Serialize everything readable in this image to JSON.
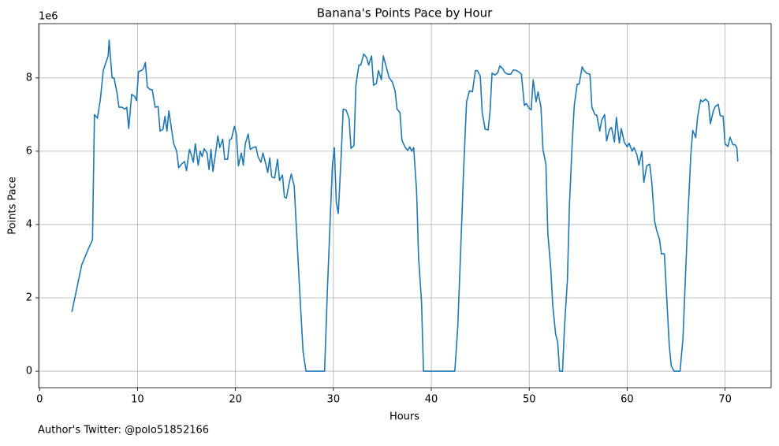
{
  "chart_data": {
    "type": "line",
    "title": "Banana's Points Pace by Hour",
    "xlabel": "Hours",
    "ylabel": "Points Pace",
    "y_offset_label": "1e6",
    "footer": "Author's Twitter: @polo51852166",
    "xlim": [
      -0.1,
      74.7
    ],
    "ylim": [
      -0.45,
      9.48
    ],
    "xticks": [
      0,
      10,
      20,
      30,
      40,
      50,
      60,
      70
    ],
    "yticks": [
      0,
      2,
      4,
      6,
      8
    ],
    "grid": true,
    "series": [
      {
        "color": "#1f77b4",
        "x": [
          3.3,
          4.3,
          5.0,
          5.4,
          5.6,
          5.9,
          6.2,
          6.5,
          7.0,
          7.1,
          7.4,
          7.6,
          7.9,
          8.1,
          8.4,
          8.7,
          8.9,
          9.1,
          9.4,
          9.7,
          9.9,
          10.1,
          10.4,
          10.6,
          10.8,
          11.0,
          11.3,
          11.5,
          11.8,
          12.1,
          12.3,
          12.6,
          12.8,
          13.0,
          13.2,
          13.5,
          13.7,
          14.0,
          14.2,
          14.5,
          14.8,
          15.0,
          15.3,
          15.5,
          15.7,
          15.9,
          16.2,
          16.4,
          16.6,
          16.8,
          17.1,
          17.3,
          17.5,
          17.7,
          18.0,
          18.2,
          18.4,
          18.7,
          18.9,
          19.2,
          19.4,
          19.6,
          19.9,
          20.1,
          20.3,
          20.6,
          20.8,
          21.0,
          21.3,
          21.5,
          21.8,
          22.1,
          22.3,
          22.6,
          22.8,
          23.1,
          23.3,
          23.5,
          23.7,
          24.0,
          24.3,
          24.5,
          24.8,
          25.0,
          25.2,
          25.5,
          25.7,
          26.0,
          26.3,
          26.6,
          26.9,
          27.2,
          28.0,
          29.1,
          29.4,
          29.7,
          29.9,
          30.1,
          30.3,
          30.5,
          30.8,
          31.0,
          31.3,
          31.6,
          31.8,
          32.1,
          32.3,
          32.6,
          32.8,
          33.1,
          33.4,
          33.6,
          33.9,
          34.1,
          34.4,
          34.6,
          34.9,
          35.1,
          35.4,
          35.7,
          36.0,
          36.3,
          36.5,
          36.8,
          37.0,
          37.3,
          37.6,
          37.8,
          38.0,
          38.2,
          38.5,
          38.7,
          39.0,
          39.2,
          40.0,
          41.0,
          42.0,
          42.4,
          42.7,
          43.0,
          43.3,
          43.6,
          43.9,
          44.2,
          44.5,
          44.7,
          45.0,
          45.2,
          45.5,
          45.8,
          46.0,
          46.2,
          46.5,
          46.8,
          47.0,
          47.3,
          47.5,
          47.8,
          48.1,
          48.4,
          48.7,
          49.0,
          49.2,
          49.5,
          49.7,
          50.0,
          50.2,
          50.4,
          50.7,
          50.9,
          51.2,
          51.4,
          51.7,
          51.9,
          52.2,
          52.4,
          52.7,
          52.9,
          53.1,
          53.4,
          53.6,
          53.9,
          54.1,
          54.4,
          54.6,
          54.9,
          55.1,
          55.4,
          55.6,
          55.9,
          56.2,
          56.4,
          56.7,
          56.9,
          57.2,
          57.4,
          57.7,
          57.9,
          58.2,
          58.4,
          58.7,
          58.9,
          59.2,
          59.4,
          59.7,
          60.0,
          60.2,
          60.5,
          60.7,
          61.0,
          61.2,
          61.5,
          61.7,
          62.0,
          62.3,
          62.5,
          62.8,
          63.0,
          63.3,
          63.5,
          63.8,
          64.0,
          64.3,
          64.5,
          64.8,
          65.4,
          65.7,
          66.0,
          66.2,
          66.5,
          66.7,
          67.0,
          67.2,
          67.5,
          67.7,
          68.0,
          68.3,
          68.5,
          68.8,
          69.0,
          69.3,
          69.5,
          69.8,
          70.0,
          70.3,
          70.5,
          70.8,
          71.0,
          71.2,
          71.3
        ],
        "values": [
          1.62,
          2.9,
          3.35,
          3.58,
          7.0,
          6.9,
          7.4,
          8.2,
          8.6,
          9.03,
          8.0,
          8.0,
          7.6,
          7.2,
          7.2,
          7.15,
          7.2,
          6.62,
          7.55,
          7.5,
          7.38,
          8.17,
          8.2,
          8.25,
          8.42,
          7.75,
          7.68,
          7.68,
          7.2,
          7.22,
          6.55,
          6.6,
          6.95,
          6.55,
          7.1,
          6.55,
          6.2,
          6.0,
          5.55,
          5.65,
          5.72,
          5.47,
          6.05,
          5.9,
          5.7,
          6.2,
          5.62,
          6.0,
          5.85,
          6.07,
          5.95,
          5.5,
          6.05,
          5.45,
          6.0,
          6.42,
          6.1,
          6.33,
          5.78,
          5.78,
          6.3,
          6.35,
          6.68,
          6.45,
          5.6,
          5.95,
          5.62,
          6.2,
          6.47,
          6.05,
          6.1,
          6.12,
          5.85,
          5.7,
          5.95,
          5.65,
          5.42,
          5.82,
          5.3,
          5.27,
          5.78,
          5.2,
          5.35,
          4.75,
          4.72,
          5.15,
          5.38,
          5.05,
          3.5,
          2.0,
          0.55,
          0,
          0,
          0,
          2.3,
          4.3,
          5.6,
          6.1,
          4.6,
          4.3,
          5.9,
          7.15,
          7.12,
          6.9,
          6.08,
          6.15,
          7.8,
          8.35,
          8.35,
          8.65,
          8.55,
          8.35,
          8.6,
          7.8,
          7.85,
          8.2,
          7.95,
          8.6,
          8.3,
          8.0,
          7.9,
          7.65,
          7.15,
          7.05,
          6.3,
          6.12,
          6.02,
          6.12,
          6.0,
          6.1,
          4.9,
          3.1,
          1.9,
          0,
          0,
          0,
          0,
          0,
          1.2,
          3.3,
          5.5,
          7.35,
          7.65,
          7.62,
          8.2,
          8.2,
          8.05,
          7.05,
          6.6,
          6.58,
          7.1,
          8.13,
          8.08,
          8.15,
          8.33,
          8.25,
          8.15,
          8.1,
          8.1,
          8.22,
          8.2,
          8.15,
          8.1,
          7.25,
          7.3,
          7.17,
          7.13,
          7.95,
          7.35,
          7.62,
          7.2,
          6.05,
          5.65,
          3.75,
          2.8,
          1.8,
          1.0,
          0.8,
          0,
          0,
          1.2,
          2.5,
          4.5,
          6.3,
          7.25,
          7.83,
          7.83,
          8.3,
          8.2,
          8.12,
          8.1,
          7.2,
          7.0,
          6.98,
          6.55,
          6.85,
          7.0,
          6.28,
          6.6,
          6.65,
          6.25,
          6.92,
          6.22,
          6.62,
          6.25,
          6.12,
          6.22,
          6.0,
          6.1,
          5.9,
          5.62,
          6.0,
          5.15,
          5.6,
          5.65,
          5.2,
          4.1,
          3.85,
          3.6,
          3.2,
          3.2,
          2.2,
          0.7,
          0.15,
          0,
          0,
          0.9,
          2.9,
          4.2,
          5.9,
          6.57,
          6.37,
          6.95,
          7.4,
          7.35,
          7.42,
          7.35,
          6.75,
          7.1,
          7.22,
          7.28,
          6.97,
          6.95,
          6.2,
          6.13,
          6.38,
          6.18,
          6.18,
          6.1,
          5.72
        ]
      }
    ]
  }
}
